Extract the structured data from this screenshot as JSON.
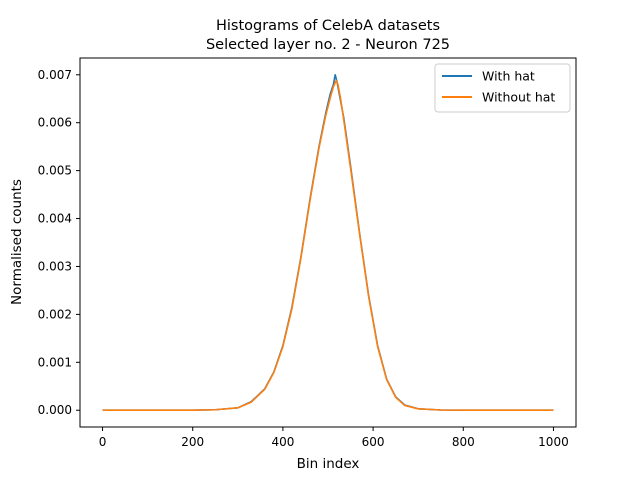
{
  "chart_data": {
    "type": "line",
    "title": "Histograms of CelebA datasets",
    "subtitle": "Selected layer no. 2 - Neuron 725",
    "xlabel": "Bin index",
    "ylabel": "Normalised counts",
    "xlim": [
      -50,
      1050
    ],
    "ylim": [
      -0.00035,
      0.00735
    ],
    "xticks": [
      "0",
      "200",
      "400",
      "600",
      "800",
      "1000"
    ],
    "yticks": [
      "0.000",
      "0.001",
      "0.002",
      "0.003",
      "0.004",
      "0.005",
      "0.006",
      "0.007"
    ],
    "grid": false,
    "legend_position": "top-right",
    "series": [
      {
        "name": "With hat",
        "color": "#1f77b4",
        "points": [
          [
            0,
            0
          ],
          [
            100,
            0
          ],
          [
            200,
            0
          ],
          [
            250,
            1e-05
          ],
          [
            300,
            5e-05
          ],
          [
            330,
            0.00018
          ],
          [
            360,
            0.00045
          ],
          [
            380,
            0.0008
          ],
          [
            400,
            0.00135
          ],
          [
            420,
            0.00215
          ],
          [
            440,
            0.0032
          ],
          [
            460,
            0.0044
          ],
          [
            480,
            0.0055
          ],
          [
            495,
            0.0062
          ],
          [
            505,
            0.0066
          ],
          [
            512,
            0.0068
          ],
          [
            516,
            0.007
          ],
          [
            520,
            0.00685
          ],
          [
            525,
            0.0066
          ],
          [
            535,
            0.0061
          ],
          [
            550,
            0.0051
          ],
          [
            570,
            0.0037
          ],
          [
            590,
            0.0024
          ],
          [
            610,
            0.00135
          ],
          [
            630,
            0.00065
          ],
          [
            650,
            0.00028
          ],
          [
            670,
            0.00011
          ],
          [
            700,
            3e-05
          ],
          [
            750,
            5e-06
          ],
          [
            800,
            0
          ],
          [
            1000,
            0
          ]
        ]
      },
      {
        "name": "Without hat",
        "color": "#ff7f0e",
        "points": [
          [
            0,
            0
          ],
          [
            100,
            0
          ],
          [
            200,
            0
          ],
          [
            250,
            1e-05
          ],
          [
            300,
            5e-05
          ],
          [
            330,
            0.00017
          ],
          [
            360,
            0.00044
          ],
          [
            380,
            0.00079
          ],
          [
            400,
            0.00133
          ],
          [
            420,
            0.00212
          ],
          [
            440,
            0.00318
          ],
          [
            460,
            0.00437
          ],
          [
            480,
            0.00547
          ],
          [
            495,
            0.00615
          ],
          [
            505,
            0.00652
          ],
          [
            512,
            0.00675
          ],
          [
            518,
            0.00688
          ],
          [
            522,
            0.0068
          ],
          [
            528,
            0.0065
          ],
          [
            535,
            0.00605
          ],
          [
            550,
            0.00505
          ],
          [
            570,
            0.00368
          ],
          [
            590,
            0.00238
          ],
          [
            610,
            0.00133
          ],
          [
            630,
            0.00064
          ],
          [
            650,
            0.00027
          ],
          [
            670,
            0.0001
          ],
          [
            700,
            3e-05
          ],
          [
            750,
            5e-06
          ],
          [
            800,
            0
          ],
          [
            1000,
            0
          ]
        ]
      }
    ]
  }
}
